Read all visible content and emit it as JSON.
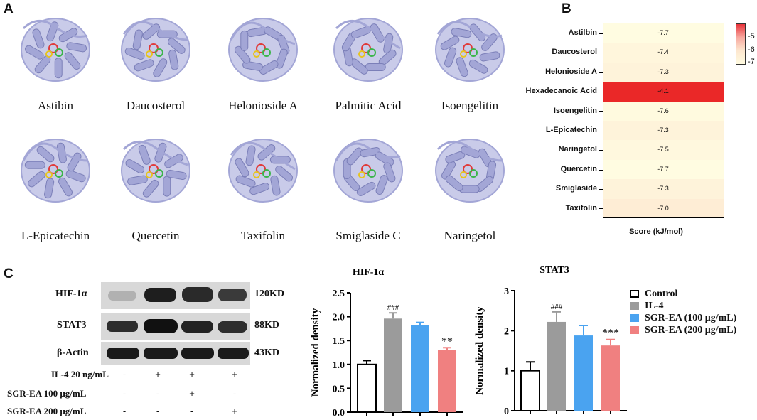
{
  "panels": {
    "a": "A",
    "b": "B",
    "c": "C"
  },
  "panel_a": {
    "structures": [
      {
        "name": "Astibin"
      },
      {
        "name": "Daucosterol"
      },
      {
        "name": "Helonioside A"
      },
      {
        "name": "Palmitic Acid"
      },
      {
        "name": "Isoengelitin"
      },
      {
        "name": "L-Epicatechin"
      },
      {
        "name": "Quercetin"
      },
      {
        "name": "Taxifolin"
      },
      {
        "name": "Smiglaside C"
      },
      {
        "name": "Naringetol"
      }
    ],
    "protein_color": "#a3a6d6"
  },
  "panel_b": {
    "xlabel": "Score (kJ/mol)",
    "colorbar_ticks": [
      "-5",
      "-6",
      "-7"
    ],
    "rows": [
      {
        "name": "Astilbin",
        "value": -7.7,
        "label": "-7.7"
      },
      {
        "name": "Daucosterol",
        "value": -7.4,
        "label": "-7.4"
      },
      {
        "name": "Helonioside A",
        "value": -7.3,
        "label": "-7.3"
      },
      {
        "name": "Hexadecanoic Acid",
        "value": -4.1,
        "label": "-4.1"
      },
      {
        "name": "Isoengelitin",
        "value": -7.6,
        "label": "-7.6"
      },
      {
        "name": "L-Epicatechin",
        "value": -7.3,
        "label": "-7.3"
      },
      {
        "name": "Naringetol",
        "value": -7.5,
        "label": "-7.5"
      },
      {
        "name": "Quercetin",
        "value": -7.7,
        "label": "-7.7"
      },
      {
        "name": "Smiglaside",
        "value": -7.3,
        "label": "-7.3"
      },
      {
        "name": "Taxifolin",
        "value": -7.0,
        "label": "-7.0"
      }
    ]
  },
  "panel_c": {
    "blots": [
      {
        "name": "HIF-1α",
        "size": "120KD"
      },
      {
        "name": "STAT3",
        "size": "88KD"
      },
      {
        "name": "β-Actin",
        "size": "43KD"
      }
    ],
    "conditions": [
      {
        "label": "IL-4 20 ng/mL",
        "signs": [
          "-",
          "+",
          "+",
          "+"
        ]
      },
      {
        "label": "SGR-EA 100 μg/mL",
        "signs": [
          "-",
          "-",
          "+",
          "-"
        ]
      },
      {
        "label": "SGR-EA 200 μg/mL",
        "signs": [
          "-",
          "-",
          "-",
          "+"
        ]
      }
    ],
    "legend": [
      "Control",
      "IL-4",
      "SGR-EA (100 μg/mL)",
      "SGR-EA (200 μg/mL)"
    ]
  },
  "chart_data": [
    {
      "type": "bar",
      "title": "HIF-1α",
      "ylabel": "Normalized density",
      "ylim": [
        0,
        2.5
      ],
      "yticks": [
        "0.0",
        "0.5",
        "1.0",
        "1.5",
        "2.0",
        "2.5"
      ],
      "categories": [
        "Control",
        "IL-4",
        "SGR-EA (100 μg/mL)",
        "SGR-EA (200 μg/mL)"
      ],
      "values": [
        1.0,
        1.96,
        1.82,
        1.3
      ],
      "errors": [
        0.08,
        0.12,
        0.06,
        0.05
      ],
      "annotations": [
        "",
        "###",
        "",
        "**"
      ],
      "colors": [
        "#ffffff",
        "#9b9b9b",
        "#4aa3f0",
        "#f08080"
      ]
    },
    {
      "type": "bar",
      "title": "STAT3",
      "ylabel": "Normalized density",
      "ylim": [
        0,
        3
      ],
      "yticks": [
        "0",
        "1",
        "2",
        "3"
      ],
      "categories": [
        "Control",
        "IL-4",
        "SGR-EA (100 μg/mL)",
        "SGR-EA (200 μg/mL)"
      ],
      "values": [
        1.0,
        2.22,
        1.88,
        1.63
      ],
      "errors": [
        0.22,
        0.25,
        0.25,
        0.15
      ],
      "annotations": [
        "",
        "###",
        "",
        "***"
      ],
      "colors": [
        "#ffffff",
        "#9b9b9b",
        "#4aa3f0",
        "#f08080"
      ]
    }
  ]
}
